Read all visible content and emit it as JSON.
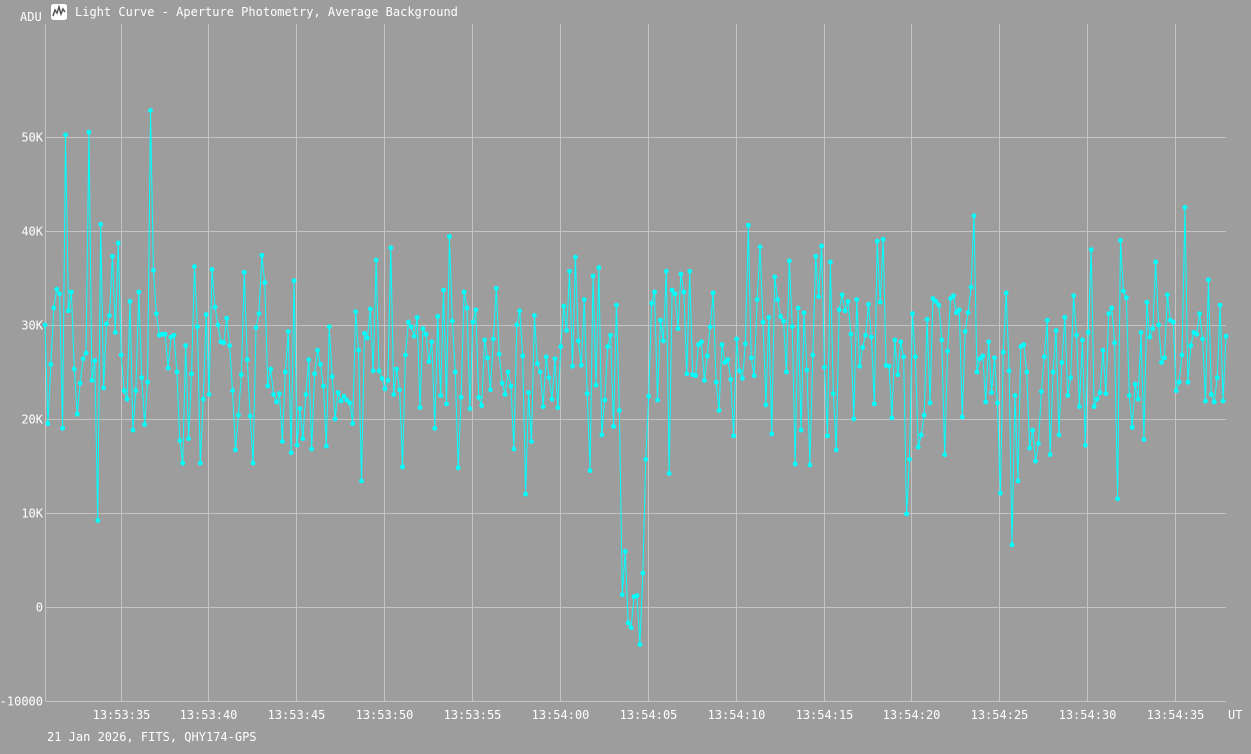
{
  "window": {
    "title": "Light Curve - Aperture Photometry, Average Background",
    "icon": "light-curve-app-icon"
  },
  "footer": {
    "text": "21 Jan 2026, FITS, QHY174-GPS"
  },
  "colors": {
    "background": "#9d9d9d",
    "grid": "#c4c4c4",
    "series": "#00ffff",
    "text": "#ffffff"
  },
  "chart_data": {
    "type": "line",
    "ylabel": "ADU",
    "xlabel": "UT",
    "ylim": [
      -10000,
      62000
    ],
    "y_ticks": [
      -10000,
      0,
      10000,
      20000,
      30000,
      40000,
      50000
    ],
    "y_tick_labels": [
      "-10000",
      "0",
      "10K",
      "20K",
      "30K",
      "40K",
      "50K"
    ],
    "x_ticks": [
      "13:53:35",
      "13:53:40",
      "13:53:45",
      "13:53:50",
      "13:53:55",
      "13:54:00",
      "13:54:05",
      "13:54:10",
      "13:54:15",
      "13:54:20",
      "13:54:25",
      "13:54:30",
      "13:54:35"
    ],
    "x_start_time": "13:53:30.7",
    "x_end_time": "13:54:37.9",
    "grid": true,
    "markers": true,
    "series": [
      {
        "values": [
          30000,
          19500,
          25800,
          31800,
          33800,
          33300,
          19000,
          50200,
          31500,
          33500,
          25300,
          20500,
          23800,
          26400,
          27000,
          50500,
          24100,
          26200,
          9200,
          40700,
          23300,
          30100,
          31000,
          37300,
          29200,
          38700,
          26800,
          23000,
          22100,
          32500,
          18800,
          23000,
          33500,
          24400,
          19400,
          23900,
          52800,
          35800,
          31200,
          28900,
          29000,
          29000,
          25400,
          28700,
          28900,
          25000,
          17700,
          15300,
          27800,
          17900,
          24800,
          36200,
          29800,
          15300,
          22100,
          31100,
          22600,
          35900,
          31900,
          30000,
          28200,
          28100,
          30700,
          27800,
          23000,
          16700,
          20400,
          24700,
          35600,
          26300,
          20300,
          15300,
          29700,
          31200,
          37400,
          34500,
          23500,
          25300,
          22600,
          21800,
          22700,
          17600,
          25000,
          29300,
          16400,
          34700,
          17200,
          21100,
          17900,
          22600,
          26300,
          16800,
          24800,
          27300,
          25800,
          23500,
          17100,
          29800,
          24500,
          20000,
          22800,
          21900,
          22400,
          22000,
          21700,
          19500,
          31400,
          27300,
          13400,
          29100,
          28600,
          31700,
          25100,
          36900,
          25100,
          24300,
          23200,
          24100,
          38200,
          22600,
          25300,
          23100,
          14900,
          26800,
          30300,
          29800,
          28800,
          30800,
          21200,
          29600,
          29000,
          26100,
          28200,
          19000,
          30900,
          22500,
          33700,
          21600,
          39400,
          30400,
          25000,
          14800,
          22300,
          33500,
          31800,
          21100,
          30300,
          31600,
          22300,
          21400,
          28400,
          26500,
          23100,
          28500,
          33900,
          26900,
          23800,
          22600,
          25000,
          23500,
          16800,
          30000,
          31500,
          26700,
          12000,
          22800,
          17600,
          31000,
          25900,
          25000,
          21300,
          26600,
          24400,
          22100,
          26400,
          21200,
          27700,
          32000,
          29400,
          35700,
          25600,
          37200,
          28300,
          25700,
          32700,
          22700,
          14500,
          35200,
          23600,
          36100,
          18300,
          22000,
          27700,
          28900,
          19200,
          32100,
          20900,
          1300,
          5900,
          -1700,
          -2200,
          1100,
          1200,
          -4000,
          3600,
          15700,
          22400,
          32300,
          33500,
          22000,
          30500,
          28300,
          35700,
          14200,
          33700,
          33300,
          29600,
          35400,
          33500,
          24800,
          35700,
          24700,
          24600,
          27900,
          28200,
          24100,
          26700,
          29800,
          33400,
          23900,
          20900,
          27900,
          26000,
          26300,
          24200,
          18200,
          28500,
          25100,
          24300,
          28000,
          40600,
          26500,
          24600,
          32700,
          38300,
          30300,
          21500,
          30800,
          18400,
          35100,
          32700,
          30900,
          30400,
          25000,
          36800,
          29800,
          15200,
          31800,
          18800,
          31300,
          25200,
          15100,
          26800,
          37300,
          33000,
          38400,
          25500,
          18200,
          36700,
          22700,
          16700,
          31600,
          33200,
          31500,
          32500,
          29000,
          20000,
          32700,
          25600,
          27600,
          28900,
          32200,
          28700,
          21600,
          38900,
          32400,
          39100,
          25700,
          25600,
          20100,
          28400,
          24700,
          28200,
          26600,
          9900,
          15700,
          31200,
          26600,
          17000,
          18300,
          20400,
          30600,
          21700,
          32800,
          32500,
          32100,
          28400,
          16200,
          27200,
          32800,
          33100,
          31300,
          31600,
          20200,
          29300,
          31300,
          34000,
          41600,
          25000,
          26400,
          26700,
          21800,
          28200,
          22800,
          26500,
          21700,
          12100,
          27100,
          33400,
          25100,
          6600,
          22500,
          13400,
          27700,
          27900,
          25000,
          16900,
          18800,
          15500,
          17400,
          22900,
          26600,
          30500,
          16200,
          25000,
          29400,
          18300,
          26000,
          30800,
          22500,
          24400,
          33100,
          28900,
          21300,
          28400,
          17200,
          29200,
          38000,
          21300,
          22100,
          22800,
          27300,
          22700,
          31200,
          31800,
          28100,
          11500,
          39000,
          33600,
          32900,
          22500,
          19100,
          23700,
          22100,
          29200,
          17800,
          32400,
          28700,
          29600,
          36700,
          30000,
          26000,
          26500,
          33200,
          30500,
          30300,
          23000,
          23900,
          26800,
          42500,
          23900,
          27800,
          29200,
          29000,
          31200,
          28500,
          21900,
          34800,
          22600,
          21800,
          24400,
          32100,
          21900,
          28800
        ]
      }
    ]
  }
}
